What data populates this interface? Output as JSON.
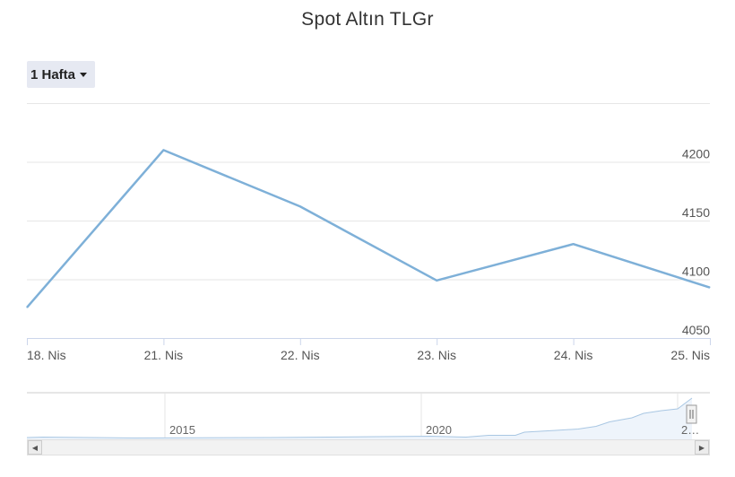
{
  "header": {
    "title": "Spot Altın TLGr"
  },
  "range_selector": {
    "label": "1 Hafta"
  },
  "navigator": {
    "year_labels": [
      "2015",
      "2020",
      "2…"
    ],
    "scroll_left_glyph": "◀",
    "scroll_right_glyph": "▶"
  },
  "colors": {
    "series": "#7eb0d8",
    "grid": "#e6e6e6",
    "axis": "#ccd6eb",
    "text": "#555555"
  },
  "chart_data": {
    "type": "line",
    "title": "Spot Altın TLGr",
    "categories": [
      "18. Nis",
      "21. Nis",
      "22. Nis",
      "23. Nis",
      "24. Nis",
      "25. Nis"
    ],
    "series": [
      {
        "values": [
          4076,
          4210,
          4162,
          4099,
          4130,
          4093
        ]
      }
    ],
    "y_ticks": [
      4050,
      4100,
      4150,
      4200
    ],
    "ylim": [
      4050,
      4250
    ],
    "grid": true,
    "y_axis_side": "right"
  }
}
